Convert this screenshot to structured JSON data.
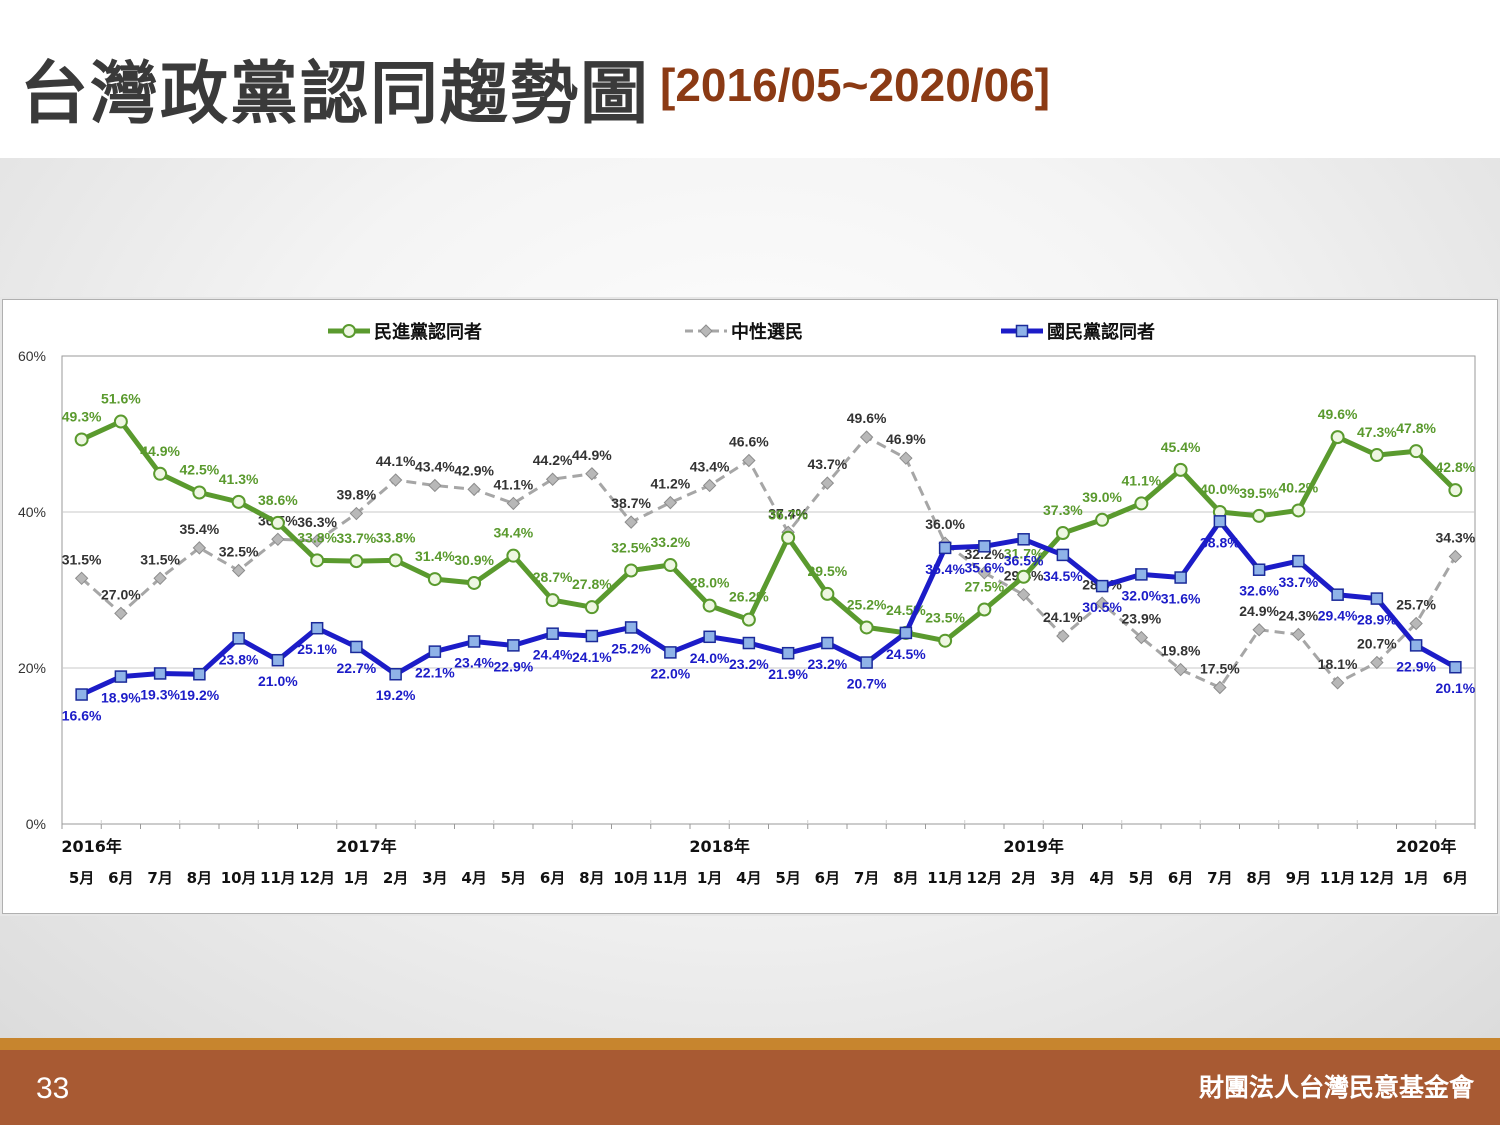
{
  "slide": {
    "title": "台灣政黨認同趨勢圖",
    "subtitle": "[2016/05~2020/06]",
    "page_number": "33",
    "organization": "財團法人台灣民意基金會"
  },
  "colors": {
    "dpp": "#5a9a2e",
    "neutral": "#a6a6a6",
    "kmt": "#1c1cc8",
    "footer": "#a85a33",
    "footer_accent": "#c7852e",
    "subtitle": "#8b3a14"
  },
  "chart_data": {
    "type": "line",
    "ylim": [
      0,
      60
    ],
    "yticks": [
      "0%",
      "20%",
      "40%",
      "60%"
    ],
    "ytick_values": [
      0,
      20,
      40,
      60
    ],
    "grid": "horizontal",
    "legend_position": "top",
    "x": [
      "5月",
      "6月",
      "7月",
      "8月",
      "10月",
      "11月",
      "12月",
      "1月",
      "2月",
      "3月",
      "4月",
      "5月",
      "6月",
      "8月",
      "10月",
      "11月",
      "1月",
      "4月",
      "5月",
      "6月",
      "7月",
      "8月",
      "11月",
      "12月",
      "2月",
      "3月",
      "4月",
      "5月",
      "6月",
      "7月",
      "8月",
      "9月",
      "11月",
      "12月",
      "1月",
      "6月"
    ],
    "year_labels": [
      {
        "label": "2016年",
        "index": 0
      },
      {
        "label": "2017年",
        "index": 7
      },
      {
        "label": "2018年",
        "index": 16
      },
      {
        "label": "2019年",
        "index": 24
      },
      {
        "label": "2020年",
        "index": 34
      }
    ],
    "series": [
      {
        "key": "dpp",
        "name": "民進黨認同者",
        "values": [
          49.3,
          51.6,
          44.9,
          42.5,
          41.3,
          38.6,
          33.8,
          33.7,
          33.8,
          31.4,
          30.9,
          34.4,
          28.7,
          27.8,
          32.5,
          33.2,
          28.0,
          26.2,
          36.7,
          29.5,
          25.2,
          24.5,
          23.5,
          27.5,
          31.7,
          37.3,
          39.0,
          41.1,
          45.4,
          40.0,
          39.5,
          40.2,
          49.6,
          47.3,
          47.8,
          42.8
        ],
        "labels": [
          "49.3%",
          "51.6%",
          "44.9%",
          "42.5%",
          "41.3%",
          "38.6%",
          "33.8%",
          "33.7%",
          "33.8%",
          "31.4%",
          "30.9%",
          "34.4%",
          "28.7%",
          "27.8%",
          "32.5%",
          "33.2%",
          "28.0%",
          "26.2%",
          "36.7%",
          "29.5%",
          "25.2%",
          "24.5%",
          "23.5%",
          "27.5%",
          "31.7%",
          "37.3%",
          "39.0%",
          "41.1%",
          "45.4%",
          "40.0%",
          "39.5%",
          "40.2%",
          "49.6%",
          "47.3%",
          "47.8%",
          "42.8%"
        ]
      },
      {
        "key": "neutral",
        "name": "中性選民",
        "values": [
          31.5,
          27.0,
          31.5,
          35.4,
          32.5,
          36.5,
          36.3,
          39.8,
          44.1,
          43.4,
          42.9,
          41.1,
          44.2,
          44.9,
          38.7,
          41.2,
          43.4,
          46.6,
          37.4,
          43.7,
          49.6,
          46.9,
          36.0,
          32.2,
          29.4,
          24.1,
          28.3,
          23.9,
          19.8,
          17.5,
          24.9,
          24.3,
          18.1,
          20.7,
          25.7,
          34.3
        ],
        "labels": [
          "31.5%",
          "27.0%",
          "31.5%",
          "35.4%",
          "32.5%",
          "36.5%",
          "36.3%",
          "39.8%",
          "44.1%",
          "43.4%",
          "42.9%",
          "41.1%",
          "44.2%",
          "44.9%",
          "38.7%",
          "41.2%",
          "43.4%",
          "46.6%",
          "37.4%",
          "43.7%",
          "49.6%",
          "46.9%",
          "36.0%",
          "32.2%",
          "29.4%",
          "24.1%",
          "28.3%",
          "23.9%",
          "19.8%",
          "17.5%",
          "24.9%",
          "24.3%",
          "18.1%",
          "20.7%",
          "25.7%",
          "34.3%"
        ]
      },
      {
        "key": "kmt",
        "name": "國民黨認同者",
        "values": [
          16.6,
          18.9,
          19.3,
          19.2,
          23.8,
          21.0,
          25.1,
          22.7,
          19.2,
          22.1,
          23.4,
          22.9,
          24.4,
          24.1,
          25.2,
          22.0,
          24.0,
          23.2,
          21.9,
          23.2,
          20.7,
          24.5,
          35.4,
          35.6,
          36.5,
          34.5,
          30.5,
          32.0,
          31.6,
          38.8,
          32.6,
          33.7,
          29.4,
          28.9,
          22.9,
          20.1
        ],
        "labels": [
          "16.6%",
          "18.9%",
          "19.3%",
          "19.2%",
          "23.8%",
          "21.0%",
          "25.1%",
          "22.7%",
          "19.2%",
          "22.1%",
          "23.4%",
          "22.9%",
          "24.4%",
          "24.1%",
          "25.2%",
          "22.0%",
          "24.0%",
          "23.2%",
          "21.9%",
          "23.2%",
          "20.7%",
          "24.5%",
          "35.4%",
          "35.6%",
          "36.5%",
          "34.5%",
          "30.5%",
          "32.0%",
          "31.6%",
          "38.8%",
          "32.6%",
          "33.7%",
          "29.4%",
          "28.9%",
          "22.9%",
          "20.1%"
        ]
      }
    ]
  }
}
